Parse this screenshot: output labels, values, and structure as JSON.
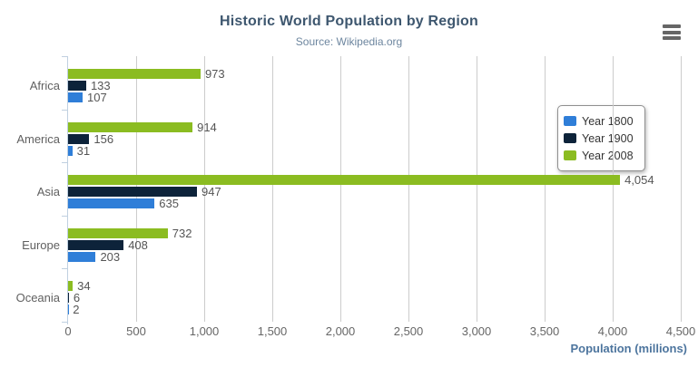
{
  "chart_data": {
    "type": "bar",
    "orientation": "horizontal",
    "title": "Historic World Population by Region",
    "subtitle": "Source: Wikipedia.org",
    "categories": [
      "Africa",
      "America",
      "Asia",
      "Europe",
      "Oceania"
    ],
    "series": [
      {
        "name": "Year 1800",
        "color": "#2f7ed8",
        "values": [
          107,
          31,
          635,
          203,
          2
        ]
      },
      {
        "name": "Year 1900",
        "color": "#0d233a",
        "values": [
          133,
          156,
          947,
          408,
          6
        ]
      },
      {
        "name": "Year 2008",
        "color": "#8bbc21",
        "values": [
          973,
          914,
          4054,
          732,
          34
        ]
      }
    ],
    "bar_order_top_to_bottom": [
      "Year 2008",
      "Year 1900",
      "Year 1800"
    ],
    "xlabel": "Population (millions)",
    "xlim": [
      0,
      4500
    ],
    "xticks": {
      "values": [
        0,
        500,
        1000,
        1500,
        2000,
        2500,
        3000,
        3500,
        4000,
        4500
      ],
      "labels": [
        "0",
        "500",
        "1,000",
        "1,500",
        "2,000",
        "2,500",
        "3,000",
        "3,500",
        "4,000",
        "4,500"
      ]
    },
    "grid": "vertical-only",
    "legend": {
      "position": "middle-right",
      "entries": [
        "Year 1800",
        "Year 1900",
        "Year 2008"
      ]
    },
    "data_labels": "shown at end of each bar"
  },
  "toolbar": {
    "context_menu_icon": "hamburger"
  },
  "colors": {
    "title": "#3E576F",
    "subtitle": "#6D869F",
    "axis_title": "#4d759e",
    "axis_line": "#C0D0E0",
    "gridline": "#cccccc",
    "category_label": "#606060",
    "tick_label": "#666666",
    "value_label": "#555555",
    "legend_text": "#333333",
    "background": "#ffffff"
  }
}
